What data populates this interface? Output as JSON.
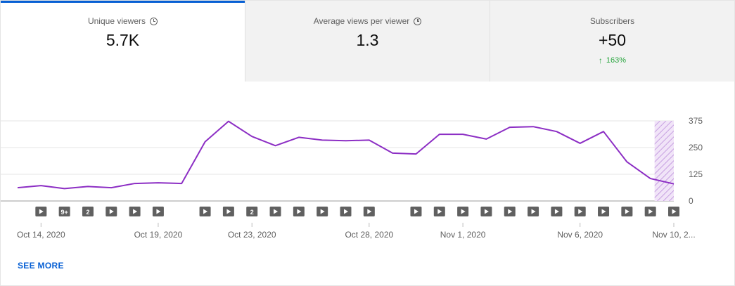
{
  "tabs": [
    {
      "title": "Unique viewers",
      "value": "5.7K",
      "icon": "clock-icon",
      "active": true
    },
    {
      "title": "Average views per viewer",
      "value": "1.3",
      "icon": "clock-icon",
      "active": false
    },
    {
      "title": "Subscribers",
      "value": "+50",
      "delta": "163%",
      "delta_icon": "up-arrow-icon",
      "delta_color": "#2ba640",
      "active": false
    }
  ],
  "see_more": "SEE MORE",
  "colors": {
    "line": "#8c2ec4",
    "accent": "#065fd4",
    "forecast_hatch": "#b685d8",
    "forecast_fill": "#f1e4f8"
  },
  "chart_data": {
    "type": "line",
    "title": "",
    "series": [
      {
        "x": [
          "2020-10-13",
          "2020-10-14",
          "2020-10-15",
          "2020-10-16",
          "2020-10-17",
          "2020-10-18",
          "2020-10-19",
          "2020-10-20",
          "2020-10-21",
          "2020-10-22",
          "2020-10-23",
          "2020-10-24",
          "2020-10-25",
          "2020-10-26",
          "2020-10-27",
          "2020-10-28",
          "2020-10-29",
          "2020-10-30",
          "2020-10-31",
          "2020-11-01",
          "2020-11-02",
          "2020-11-03",
          "2020-11-04",
          "2020-11-05",
          "2020-11-06",
          "2020-11-07",
          "2020-11-08",
          "2020-11-09",
          "2020-11-10"
        ],
        "values": [
          62,
          72,
          58,
          68,
          62,
          82,
          85,
          82,
          277,
          373,
          302,
          259,
          298,
          285,
          282,
          285,
          224,
          220,
          312,
          312,
          290,
          345,
          348,
          325,
          270,
          325,
          183,
          105,
          80
        ]
      }
    ],
    "x_tick_labels": [
      {
        "x": "2020-10-14",
        "label": "Oct 14, 2020"
      },
      {
        "x": "2020-10-19",
        "label": "Oct 19, 2020"
      },
      {
        "x": "2020-10-23",
        "label": "Oct 23, 2020"
      },
      {
        "x": "2020-10-28",
        "label": "Oct 28, 2020"
      },
      {
        "x": "2020-11-01",
        "label": "Nov 1, 2020"
      },
      {
        "x": "2020-11-06",
        "label": "Nov 6, 2020"
      },
      {
        "x": "2020-11-10",
        "label": "Nov 10, 2..."
      }
    ],
    "y_ticks": [
      0,
      125,
      250,
      375
    ],
    "ylim": [
      0,
      375
    ],
    "xlim": [
      "2020-10-13",
      "2020-11-10"
    ],
    "grid": true,
    "y_axis_position": "right",
    "incomplete_period_start": "2020-11-09",
    "video_markers": [
      {
        "x": "2020-10-14",
        "label": ""
      },
      {
        "x": "2020-10-15",
        "label": "9+"
      },
      {
        "x": "2020-10-16",
        "label": "2"
      },
      {
        "x": "2020-10-17",
        "label": ""
      },
      {
        "x": "2020-10-18",
        "label": ""
      },
      {
        "x": "2020-10-19",
        "label": ""
      },
      {
        "x": "2020-10-21",
        "label": ""
      },
      {
        "x": "2020-10-22",
        "label": ""
      },
      {
        "x": "2020-10-23",
        "label": "2"
      },
      {
        "x": "2020-10-24",
        "label": ""
      },
      {
        "x": "2020-10-25",
        "label": ""
      },
      {
        "x": "2020-10-26",
        "label": ""
      },
      {
        "x": "2020-10-27",
        "label": ""
      },
      {
        "x": "2020-10-28",
        "label": ""
      },
      {
        "x": "2020-10-30",
        "label": ""
      },
      {
        "x": "2020-10-31",
        "label": ""
      },
      {
        "x": "2020-11-01",
        "label": ""
      },
      {
        "x": "2020-11-02",
        "label": ""
      },
      {
        "x": "2020-11-03",
        "label": ""
      },
      {
        "x": "2020-11-04",
        "label": ""
      },
      {
        "x": "2020-11-05",
        "label": ""
      },
      {
        "x": "2020-11-06",
        "label": ""
      },
      {
        "x": "2020-11-07",
        "label": ""
      },
      {
        "x": "2020-11-08",
        "label": ""
      },
      {
        "x": "2020-11-09",
        "label": ""
      },
      {
        "x": "2020-11-10",
        "label": ""
      }
    ]
  }
}
